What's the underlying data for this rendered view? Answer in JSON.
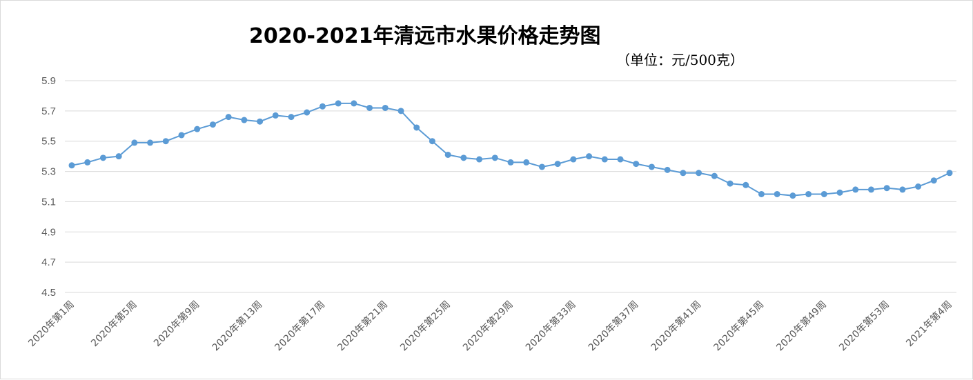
{
  "chart_data": {
    "type": "line",
    "title": "2020-2021年清远市水果价格走势图",
    "subtitle": "（单位：元/500克）",
    "xlabel": "",
    "ylabel": "",
    "ylim": [
      4.5,
      5.9
    ],
    "yticks": [
      "4.5",
      "4.7",
      "4.9",
      "5.1",
      "5.3",
      "5.5",
      "5.7",
      "5.9"
    ],
    "grid": true,
    "line_color": "#5B9BD5",
    "grid_color": "#D9D9D9",
    "categories": [
      "2020年第1周",
      "2020年第2周",
      "2020年第3周",
      "2020年第4周",
      "2020年第5周",
      "2020年第6周",
      "2020年第7周",
      "2020年第8周",
      "2020年第9周",
      "2020年第10周",
      "2020年第11周",
      "2020年第12周",
      "2020年第13周",
      "2020年第14周",
      "2020年第15周",
      "2020年第16周",
      "2020年第17周",
      "2020年第18周",
      "2020年第19周",
      "2020年第20周",
      "2020年第21周",
      "2020年第22周",
      "2020年第23周",
      "2020年第24周",
      "2020年第25周",
      "2020年第26周",
      "2020年第27周",
      "2020年第28周",
      "2020年第29周",
      "2020年第30周",
      "2020年第31周",
      "2020年第32周",
      "2020年第33周",
      "2020年第34周",
      "2020年第35周",
      "2020年第36周",
      "2020年第37周",
      "2020年第38周",
      "2020年第39周",
      "2020年第40周",
      "2020年第41周",
      "2020年第42周",
      "2020年第43周",
      "2020年第44周",
      "2020年第45周",
      "2020年第46周",
      "2020年第47周",
      "2020年第48周",
      "2020年第49周",
      "2020年第50周",
      "2020年第51周",
      "2020年第52周",
      "2020年第53周",
      "2021年第1周",
      "2021年第2周",
      "2021年第3周",
      "2021年第4周"
    ],
    "visible_category_labels": [
      "2020年第1周",
      "2020年第5周",
      "2020年第9周",
      "2020年第13周",
      "2020年第17周",
      "2020年第21周",
      "2020年第25周",
      "2020年第29周",
      "2020年第33周",
      "2020年第37周",
      "2020年第41周",
      "2020年第45周",
      "2020年第49周",
      "2020年第53周",
      "2021年第4周"
    ],
    "values": [
      5.34,
      5.36,
      5.39,
      5.4,
      5.49,
      5.49,
      5.5,
      5.54,
      5.58,
      5.61,
      5.66,
      5.64,
      5.63,
      5.67,
      5.66,
      5.69,
      5.73,
      5.75,
      5.75,
      5.72,
      5.72,
      5.7,
      5.59,
      5.5,
      5.41,
      5.39,
      5.38,
      5.39,
      5.36,
      5.36,
      5.33,
      5.35,
      5.38,
      5.4,
      5.38,
      5.38,
      5.35,
      5.33,
      5.31,
      5.29,
      5.29,
      5.27,
      5.22,
      5.21,
      5.15,
      5.15,
      5.14,
      5.15,
      5.15,
      5.16,
      5.18,
      5.18,
      5.19,
      5.18,
      5.2,
      5.24,
      5.29
    ]
  }
}
